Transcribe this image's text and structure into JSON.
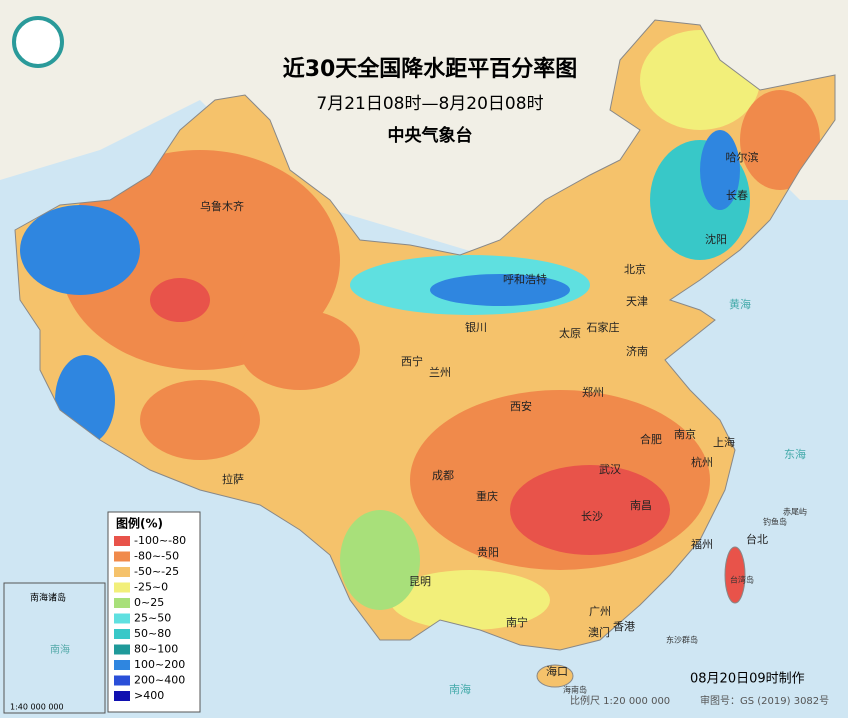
{
  "header": {
    "title": "近30天全国降水距平百分率图",
    "subtitle": "7月21日08时—8月20日08时",
    "issuer": "中央气象台"
  },
  "legend": {
    "title": "图例(%)",
    "items": [
      {
        "label": "-100~-80",
        "color": "#e8534a"
      },
      {
        "label": "-80~-50",
        "color": "#f08a4b"
      },
      {
        "label": "-50~-25",
        "color": "#f5c26b"
      },
      {
        "label": "-25~0",
        "color": "#f2ef7a"
      },
      {
        "label": "0~25",
        "color": "#a8e07a"
      },
      {
        "label": "25~50",
        "color": "#5fe0e0"
      },
      {
        "label": "50~80",
        "color": "#38c8c8"
      },
      {
        "label": "80~100",
        "color": "#1f9a9a"
      },
      {
        "label": "100~200",
        "color": "#2f86e0"
      },
      {
        "label": "200~400",
        "color": "#2a4fd8"
      },
      {
        "label": ">400",
        "color": "#1010b0"
      }
    ]
  },
  "cities": [
    "乌鲁木齐",
    "哈尔滨",
    "长春",
    "沈阳",
    "呼和浩特",
    "北京",
    "天津",
    "银川",
    "太原",
    "石家庄",
    "济南",
    "西宁",
    "兰州",
    "西安",
    "郑州",
    "合肥",
    "南京",
    "上海",
    "拉萨",
    "成都",
    "重庆",
    "武汉",
    "杭州",
    "长沙",
    "南昌",
    "贵阳",
    "福州",
    "台北",
    "昆明",
    "广州",
    "南宁",
    "澳门",
    "香港",
    "海口"
  ],
  "seas": [
    "黄海",
    "东海",
    "南海",
    "钓鱼岛",
    "赤尾屿",
    "台湾岛",
    "海南岛",
    "东沙群岛"
  ],
  "inset": {
    "title": "南海诸岛",
    "sea": "南海",
    "scale": "1:40 000 000"
  },
  "footer": {
    "made": "08月20日09时制作",
    "scale": "比例尺 1:20 000 000",
    "approval": "审图号：GS (2019) 3082号"
  }
}
